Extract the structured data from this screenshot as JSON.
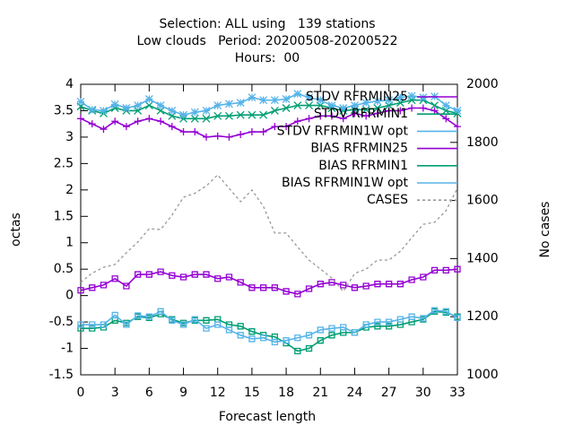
{
  "chart_data": {
    "type": "line",
    "title": [
      "Selection: ALL using   139 stations",
      "Low clouds   Period: 20200508-20200522",
      "Hours:  00"
    ],
    "xlabel": "Forecast length",
    "ylabel": "octas",
    "y2label": "No cases",
    "x": [
      0,
      1,
      2,
      3,
      4,
      5,
      6,
      7,
      8,
      9,
      10,
      11,
      12,
      13,
      14,
      15,
      16,
      17,
      18,
      19,
      20,
      21,
      22,
      23,
      24,
      25,
      26,
      27,
      28,
      29,
      30,
      31,
      32,
      33
    ],
    "xlim": [
      0,
      33
    ],
    "xticks": [
      0,
      3,
      6,
      9,
      12,
      15,
      18,
      21,
      24,
      27,
      30,
      33
    ],
    "ylim": [
      -1.5,
      4
    ],
    "yticks": [
      -1.5,
      -1,
      -0.5,
      0,
      0.5,
      1,
      1.5,
      2,
      2.5,
      3,
      3.5,
      4
    ],
    "y2lim": [
      1000,
      2000
    ],
    "y2ticks": [
      1000,
      1200,
      1400,
      1600,
      1800,
      2000
    ],
    "legend": "top right",
    "series": [
      {
        "name": "STDV RFRMIN25",
        "color": "#9400d3",
        "marker": "plus",
        "values": [
          3.35,
          3.25,
          3.15,
          3.3,
          3.2,
          3.3,
          3.35,
          3.3,
          3.2,
          3.1,
          3.1,
          3.0,
          3.02,
          3.0,
          3.05,
          3.1,
          3.1,
          3.2,
          3.2,
          3.3,
          3.35,
          3.4,
          3.4,
          3.35,
          3.45,
          3.4,
          3.45,
          3.5,
          3.5,
          3.55,
          3.55,
          3.5,
          3.35,
          3.2
        ]
      },
      {
        "name": "STDV RFRMIN1",
        "color": "#009e73",
        "marker": "cross",
        "values": [
          3.58,
          3.5,
          3.45,
          3.55,
          3.5,
          3.5,
          3.6,
          3.5,
          3.4,
          3.35,
          3.35,
          3.35,
          3.4,
          3.4,
          3.42,
          3.42,
          3.42,
          3.5,
          3.55,
          3.6,
          3.6,
          3.6,
          3.55,
          3.5,
          3.52,
          3.52,
          3.55,
          3.6,
          3.65,
          3.7,
          3.7,
          3.6,
          3.5,
          3.45
        ]
      },
      {
        "name": "STDV RFRMIN1W opt",
        "color": "#56b4e9",
        "marker": "star",
        "values": [
          3.67,
          3.52,
          3.5,
          3.62,
          3.55,
          3.6,
          3.72,
          3.6,
          3.5,
          3.42,
          3.47,
          3.5,
          3.6,
          3.63,
          3.65,
          3.75,
          3.7,
          3.7,
          3.72,
          3.82,
          3.75,
          3.7,
          3.6,
          3.55,
          3.6,
          3.65,
          3.68,
          3.7,
          3.75,
          3.78,
          3.75,
          3.77,
          3.6,
          3.5
        ]
      },
      {
        "name": "BIAS RFRMIN25",
        "color": "#9400d3",
        "marker": "square",
        "values": [
          0.1,
          0.15,
          0.2,
          0.32,
          0.18,
          0.4,
          0.4,
          0.45,
          0.38,
          0.35,
          0.4,
          0.4,
          0.32,
          0.35,
          0.25,
          0.15,
          0.15,
          0.15,
          0.08,
          0.03,
          0.13,
          0.22,
          0.25,
          0.2,
          0.15,
          0.18,
          0.22,
          0.22,
          0.22,
          0.3,
          0.35,
          0.48,
          0.48,
          0.5
        ]
      },
      {
        "name": "BIAS RFRMIN1",
        "color": "#009e73",
        "marker": "square",
        "values": [
          -0.62,
          -0.62,
          -0.6,
          -0.47,
          -0.52,
          -0.4,
          -0.42,
          -0.35,
          -0.45,
          -0.52,
          -0.47,
          -0.47,
          -0.45,
          -0.55,
          -0.58,
          -0.68,
          -0.75,
          -0.78,
          -0.9,
          -1.05,
          -1.0,
          -0.85,
          -0.75,
          -0.7,
          -0.7,
          -0.6,
          -0.58,
          -0.58,
          -0.55,
          -0.5,
          -0.45,
          -0.3,
          -0.32,
          -0.4
        ]
      },
      {
        "name": "BIAS RFRMIN1W opt",
        "color": "#56b4e9",
        "marker": "square",
        "values": [
          -0.55,
          -0.55,
          -0.55,
          -0.37,
          -0.55,
          -0.38,
          -0.4,
          -0.3,
          -0.47,
          -0.55,
          -0.45,
          -0.62,
          -0.55,
          -0.65,
          -0.75,
          -0.82,
          -0.8,
          -0.88,
          -0.85,
          -0.8,
          -0.75,
          -0.65,
          -0.62,
          -0.6,
          -0.7,
          -0.55,
          -0.5,
          -0.5,
          -0.45,
          -0.4,
          -0.43,
          -0.28,
          -0.3,
          -0.42
        ]
      },
      {
        "name": "CASES",
        "color": "#999999",
        "dashed": true,
        "axis": "y2",
        "values": [
          1318,
          1350,
          1370,
          1380,
          1420,
          1457,
          1503,
          1500,
          1550,
          1611,
          1625,
          1650,
          1688,
          1642,
          1596,
          1636,
          1580,
          1488,
          1488,
          1440,
          1395,
          1364,
          1333,
          1287,
          1349,
          1364,
          1395,
          1395,
          1425,
          1472,
          1518,
          1525,
          1565,
          1642
        ]
      }
    ]
  }
}
